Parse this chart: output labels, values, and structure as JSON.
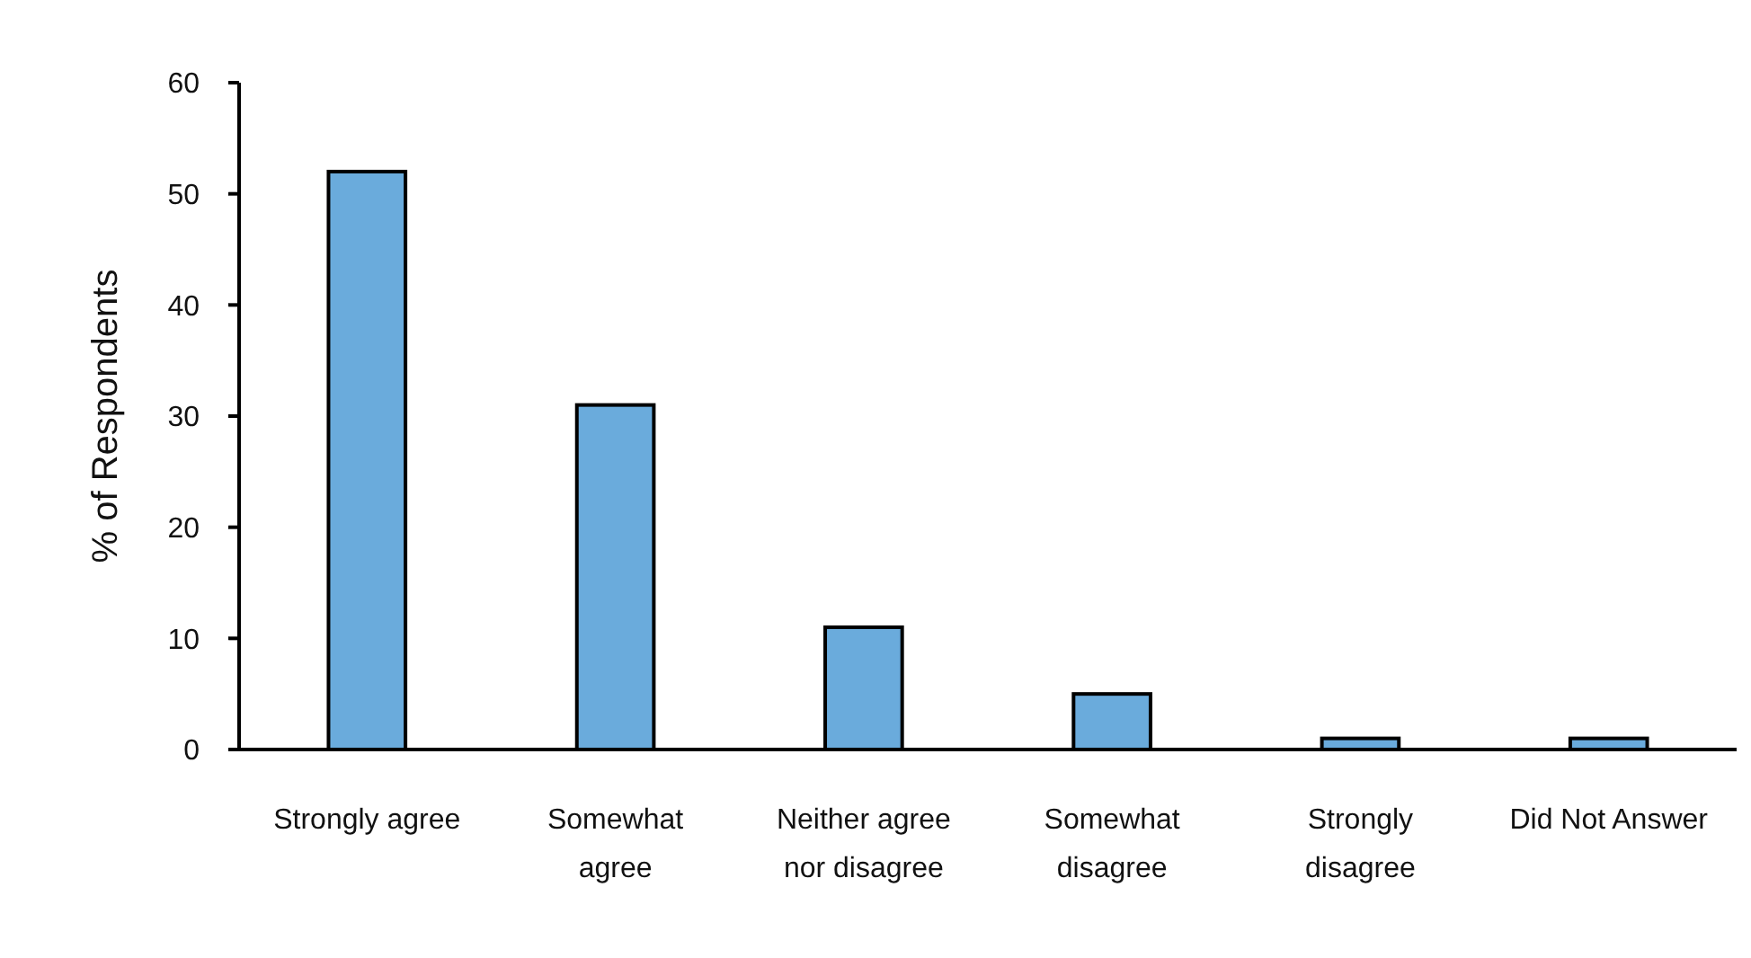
{
  "chart_data": {
    "type": "bar",
    "ylabel": "% of Respondents",
    "categories": [
      "Strongly agree",
      "Somewhat\nagree",
      "Neither agree\nnor disagree",
      "Somewhat\ndisagree",
      "Strongly\ndisagree",
      "Did Not Answer"
    ],
    "values": [
      52,
      31,
      11,
      5,
      1,
      1
    ],
    "color": "#6aabdc",
    "ylim": [
      0,
      60
    ],
    "yticks": [
      0,
      10,
      20,
      30,
      40,
      50,
      60
    ],
    "grid": false
  }
}
